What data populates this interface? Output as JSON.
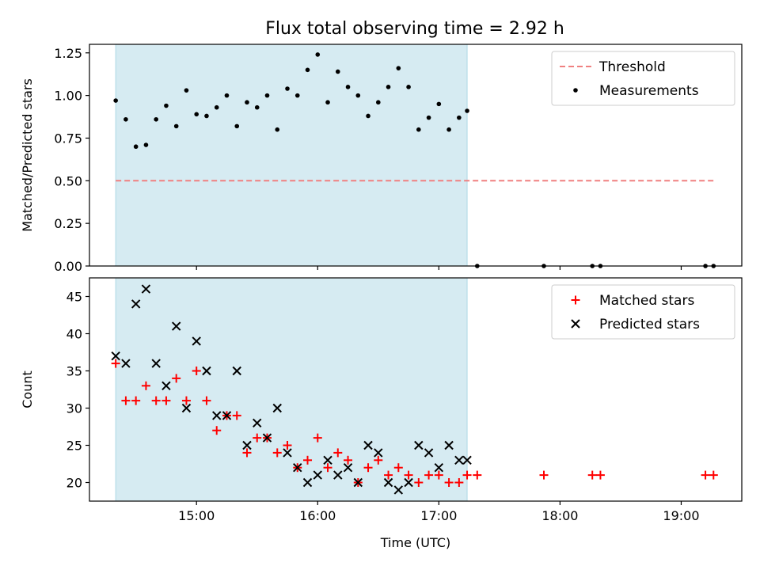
{
  "chart_data": [
    {
      "type": "scatter",
      "title": "Flux total observing time = 2.92 h",
      "ylabel": "Matched/Predicted stars",
      "xlabel": "",
      "ylim": [
        0,
        1.3
      ],
      "xlim": [
        "14:07",
        "19:30"
      ],
      "yticks": [
        0.0,
        0.25,
        0.5,
        0.75,
        1.0,
        1.25
      ],
      "ytick_labels": [
        "0.00",
        "0.25",
        "0.50",
        "0.75",
        "1.00",
        "1.25"
      ],
      "highlight_span": {
        "from": "14:20",
        "to": "17:14",
        "color": "#add8e6"
      },
      "threshold": {
        "name": "Threshold",
        "value": 0.5,
        "from": "14:20",
        "to": "19:16",
        "color": "#f08080",
        "style": "dashed"
      },
      "legend": {
        "placement": "top-right",
        "entries": [
          "Threshold",
          "Measurements"
        ]
      },
      "series": [
        {
          "name": "Measurements",
          "marker": "dot",
          "color": "#000000",
          "x": [
            "14:20",
            "14:25",
            "14:30",
            "14:35",
            "14:40",
            "14:45",
            "14:50",
            "14:55",
            "15:00",
            "15:05",
            "15:10",
            "15:15",
            "15:20",
            "15:25",
            "15:30",
            "15:35",
            "15:40",
            "15:45",
            "15:50",
            "15:55",
            "16:00",
            "16:05",
            "16:10",
            "16:15",
            "16:20",
            "16:25",
            "16:30",
            "16:35",
            "16:40",
            "16:45",
            "16:50",
            "16:55",
            "17:00",
            "17:05",
            "17:10",
            "17:14",
            "17:19",
            "17:52",
            "18:16",
            "18:20",
            "19:12",
            "19:16"
          ],
          "y": [
            0.97,
            0.86,
            0.7,
            0.71,
            0.86,
            0.94,
            0.82,
            1.03,
            0.89,
            0.88,
            0.93,
            1.0,
            0.82,
            0.96,
            0.93,
            1.0,
            0.8,
            1.04,
            1.0,
            1.15,
            1.24,
            0.96,
            1.14,
            1.05,
            1.0,
            0.88,
            0.96,
            1.05,
            1.16,
            1.05,
            0.8,
            0.87,
            0.95,
            0.8,
            0.87,
            0.91,
            0.0,
            0.0,
            0.0,
            0.0,
            0.0,
            0.0
          ]
        }
      ]
    },
    {
      "type": "scatter",
      "title": "",
      "ylabel": "Count",
      "xlabel": "Time (UTC)",
      "ylim": [
        17.5,
        47.5
      ],
      "xlim": [
        "14:07",
        "19:30"
      ],
      "yticks": [
        20,
        25,
        30,
        35,
        40,
        45
      ],
      "ytick_labels": [
        "20",
        "25",
        "30",
        "35",
        "40",
        "45"
      ],
      "xticks": [
        "15:00",
        "16:00",
        "17:00",
        "18:00",
        "19:00"
      ],
      "xtick_labels": [
        "15:00",
        "16:00",
        "17:00",
        "18:00",
        "19:00"
      ],
      "highlight_span": {
        "from": "14:20",
        "to": "17:14",
        "color": "#add8e6"
      },
      "legend": {
        "placement": "top-right",
        "entries": [
          "Matched stars",
          "Predicted stars"
        ]
      },
      "series": [
        {
          "name": "Matched stars",
          "marker": "plus",
          "color": "#ff0000",
          "x": [
            "14:20",
            "14:25",
            "14:30",
            "14:35",
            "14:40",
            "14:45",
            "14:50",
            "14:55",
            "15:00",
            "15:05",
            "15:10",
            "15:15",
            "15:20",
            "15:25",
            "15:30",
            "15:35",
            "15:40",
            "15:45",
            "15:50",
            "15:55",
            "16:00",
            "16:05",
            "16:10",
            "16:15",
            "16:20",
            "16:25",
            "16:30",
            "16:35",
            "16:40",
            "16:45",
            "16:50",
            "16:55",
            "17:00",
            "17:05",
            "17:10",
            "17:14",
            "17:19",
            "17:52",
            "18:16",
            "18:20",
            "19:12",
            "19:16"
          ],
          "y": [
            36,
            31,
            31,
            33,
            31,
            31,
            34,
            31,
            35,
            31,
            27,
            29,
            29,
            24,
            26,
            26,
            24,
            25,
            22,
            23,
            26,
            22,
            24,
            23,
            20,
            22,
            23,
            21,
            22,
            21,
            20,
            21,
            21,
            20,
            20,
            21,
            21,
            21,
            21,
            21,
            21,
            21
          ]
        },
        {
          "name": "Predicted stars",
          "marker": "x",
          "color": "#000000",
          "x": [
            "14:20",
            "14:25",
            "14:30",
            "14:35",
            "14:40",
            "14:45",
            "14:50",
            "14:55",
            "15:00",
            "15:05",
            "15:10",
            "15:15",
            "15:20",
            "15:25",
            "15:30",
            "15:35",
            "15:40",
            "15:45",
            "15:50",
            "15:55",
            "16:00",
            "16:05",
            "16:10",
            "16:15",
            "16:20",
            "16:25",
            "16:30",
            "16:35",
            "16:40",
            "16:45",
            "16:50",
            "16:55",
            "17:00",
            "17:05",
            "17:10",
            "17:14"
          ],
          "y": [
            37,
            36,
            44,
            46,
            36,
            33,
            41,
            30,
            39,
            35,
            29,
            29,
            35,
            25,
            28,
            26,
            30,
            24,
            22,
            20,
            21,
            23,
            21,
            22,
            20,
            25,
            24,
            20,
            19,
            20,
            25,
            24,
            22,
            25,
            23,
            23
          ]
        }
      ]
    }
  ]
}
